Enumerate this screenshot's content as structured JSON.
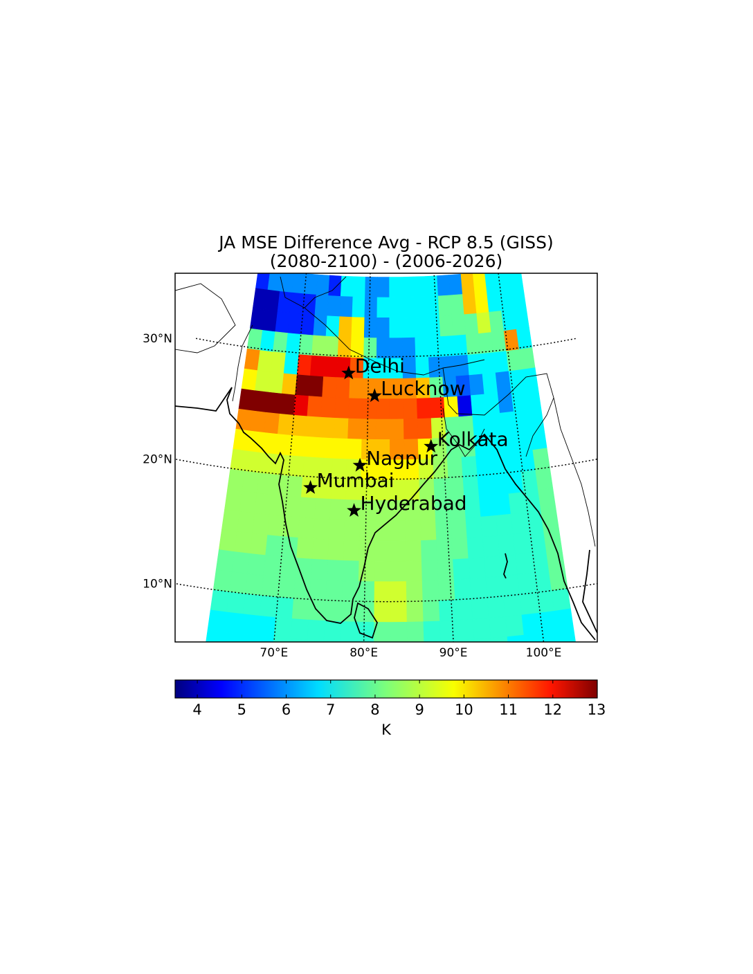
{
  "title": {
    "line1": "JA MSE Difference Avg - RCP 8.5 (GISS)",
    "line2": "(2080-2100) - (2006-2026)"
  },
  "map": {
    "projection": "lambert-conformal",
    "lon_range": [
      65,
      100
    ],
    "lat_range": [
      5.5,
      36
    ],
    "grid_lines": "dotted",
    "lon_ticks": [
      {
        "value": 70,
        "label": "70°E"
      },
      {
        "value": 80,
        "label": "80°E"
      },
      {
        "value": 90,
        "label": "90°E"
      },
      {
        "value": 100,
        "label": "100°E"
      }
    ],
    "lat_ticks": [
      {
        "value": 30,
        "label": "30°N"
      },
      {
        "value": 20,
        "label": "20°N"
      },
      {
        "value": 10,
        "label": "10°N"
      }
    ],
    "field_rows": [
      [
        5,
        6,
        6,
        6,
        6,
        6,
        5,
        7,
        7,
        6,
        6,
        7,
        7,
        7,
        7,
        6,
        6,
        10,
        9.5,
        7,
        7,
        7
      ],
      [
        4,
        4,
        5,
        5,
        5,
        6,
        6,
        6,
        7,
        6,
        7,
        7,
        7,
        7,
        7,
        8,
        8,
        10,
        9.5,
        7,
        7,
        7
      ],
      [
        4,
        4,
        5,
        5,
        5,
        6,
        7,
        10,
        9.5,
        6,
        6,
        7,
        7,
        7,
        7,
        8,
        8,
        8,
        9,
        8,
        7,
        7
      ],
      [
        8,
        7,
        8,
        7,
        8,
        8.5,
        8.5,
        10,
        9.5,
        8,
        6,
        6,
        6,
        7,
        7,
        7,
        7,
        8,
        8,
        8,
        10.5,
        7
      ],
      [
        10.5,
        9,
        9,
        7,
        11.5,
        12,
        12,
        12,
        11,
        7,
        7,
        7,
        6,
        7,
        6,
        6,
        6,
        7,
        7,
        7,
        8,
        8
      ],
      [
        9.5,
        9,
        9,
        10,
        13,
        13,
        11,
        11,
        10.5,
        10.5,
        10.5,
        10.5,
        10.5,
        10,
        8,
        6,
        5.5,
        6,
        7,
        6,
        7,
        7
      ],
      [
        13,
        13,
        13,
        13,
        12,
        11,
        11,
        11,
        11,
        11,
        11,
        11,
        11,
        11.5,
        11.5,
        9.5,
        4.5,
        7,
        7,
        6,
        7,
        7
      ],
      [
        10.5,
        10.5,
        10.5,
        10,
        10,
        10,
        10,
        10,
        10.5,
        10.5,
        10.5,
        10.5,
        11,
        11,
        9,
        8,
        8,
        7,
        7,
        7,
        7,
        7
      ],
      [
        9.5,
        9.5,
        9.5,
        9.5,
        9.5,
        9.5,
        9.5,
        9.5,
        9.5,
        10,
        10,
        10.5,
        10.5,
        9.5,
        8.5,
        8,
        8,
        7,
        7,
        7,
        7,
        7
      ],
      [
        9,
        9,
        9,
        9,
        9,
        9,
        9,
        9,
        9,
        9.5,
        9.5,
        9.5,
        9.5,
        9,
        8.5,
        8,
        7.5,
        7,
        7,
        7,
        7,
        8
      ],
      [
        8.5,
        8.5,
        8.5,
        8.5,
        8.5,
        9,
        9,
        9,
        9,
        9,
        9,
        9,
        9,
        8.5,
        8,
        8,
        7.5,
        7,
        7,
        7,
        7.5,
        8
      ],
      [
        8.5,
        8.5,
        8.5,
        8.5,
        8.5,
        8.5,
        8.5,
        8.5,
        8.5,
        8.5,
        8.5,
        8.5,
        8.5,
        8.5,
        8,
        8,
        7.5,
        7,
        7,
        7.5,
        7.5,
        8
      ],
      [
        8.5,
        8.5,
        8.5,
        8.5,
        8.5,
        8.5,
        8.5,
        8.5,
        8.5,
        8.5,
        8.5,
        8.5,
        8.5,
        8.5,
        8,
        8,
        7.5,
        7.5,
        7.5,
        7.5,
        7.5,
        8
      ],
      [
        8.5,
        8.5,
        8.5,
        8,
        8,
        8.5,
        8.5,
        8.5,
        8.5,
        8.5,
        8.5,
        8.5,
        8.5,
        8,
        8,
        8,
        7.5,
        7.5,
        7.5,
        7.5,
        7.5,
        8
      ],
      [
        8,
        8,
        8,
        8,
        8,
        8,
        8,
        8,
        8,
        8.5,
        8.5,
        8.5,
        8.5,
        8,
        8,
        7.5,
        7.5,
        7.5,
        7.5,
        7.5,
        7.5,
        8
      ],
      [
        8,
        8,
        8,
        8,
        8,
        8,
        8,
        8,
        8,
        8,
        9,
        9,
        8.5,
        8,
        8,
        7.5,
        7.5,
        7.5,
        7.5,
        7.5,
        7.5,
        8
      ],
      [
        7.5,
        7.5,
        7.5,
        7.5,
        7.5,
        8,
        8,
        8,
        8,
        8,
        9,
        9,
        8.5,
        8,
        7.5,
        7.5,
        7.5,
        7.5,
        7.5,
        7.5,
        7.5,
        7.5
      ],
      [
        7,
        7,
        7,
        7,
        7.5,
        7.5,
        7.5,
        7.5,
        7.5,
        7.5,
        8,
        8,
        8,
        7.5,
        7.5,
        7.5,
        7.5,
        7.5,
        7.5,
        7,
        7,
        7
      ],
      [
        7,
        7,
        7,
        7,
        7.5,
        7.5,
        7.5,
        7.5,
        7.5,
        7.5,
        7.5,
        7.5,
        7.5,
        7.5,
        7.5,
        7.5,
        7.5,
        7.5,
        7,
        7,
        7,
        7
      ]
    ],
    "cities": [
      {
        "name": "Delhi",
        "lon": 77.2,
        "lat": 28.6
      },
      {
        "name": "Lucknow",
        "lon": 80.9,
        "lat": 26.8
      },
      {
        "name": "Kolkata",
        "lon": 88.4,
        "lat": 22.6
      },
      {
        "name": "Nagpur",
        "lon": 79.1,
        "lat": 21.1
      },
      {
        "name": "Mumbai",
        "lon": 72.9,
        "lat": 19.1
      },
      {
        "name": "Hyderabad",
        "lon": 78.5,
        "lat": 17.4
      }
    ]
  },
  "colorbar": {
    "colormap": "jet",
    "min": 3.5,
    "max": 13,
    "ticks": [
      "4",
      "5",
      "6",
      "7",
      "8",
      "9",
      "10",
      "11",
      "12",
      "13"
    ],
    "label": "K"
  }
}
